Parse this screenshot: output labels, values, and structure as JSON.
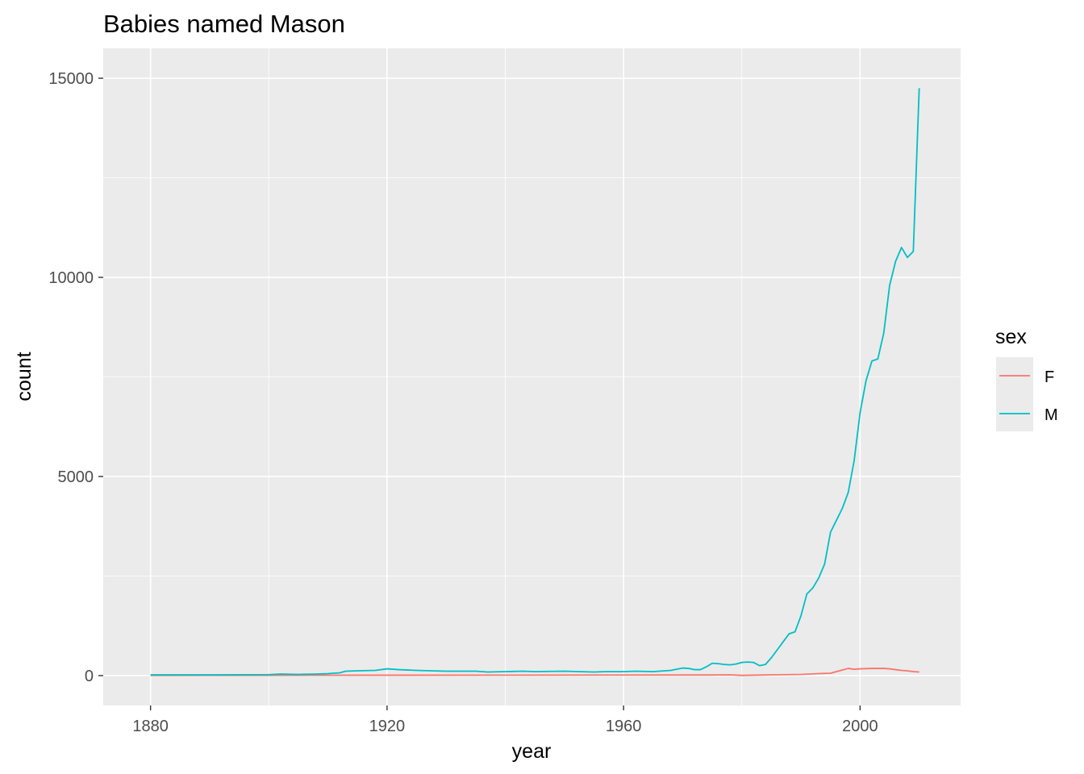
{
  "chart_data": {
    "type": "line",
    "title": "Babies named Mason",
    "xlabel": "year",
    "ylabel": "count",
    "xlim": [
      1872,
      2017
    ],
    "ylim": [
      -750,
      15750
    ],
    "x_ticks": [
      1880,
      1920,
      1960,
      2000
    ],
    "y_ticks": [
      0,
      5000,
      10000,
      15000
    ],
    "grid": true,
    "legend": {
      "title": "sex",
      "position": "right"
    },
    "series": [
      {
        "name": "F",
        "color": "#F8766D",
        "x": [
          1880,
          1900,
          1940,
          1975,
          1978,
          1980,
          1982,
          1985,
          1990,
          1993,
          1995,
          1996,
          1997,
          1998,
          1999,
          2000,
          2002,
          2004,
          2005,
          2006,
          2007,
          2008,
          2009,
          2010
        ],
        "y": [
          5,
          8,
          12,
          15,
          20,
          5,
          10,
          20,
          30,
          50,
          60,
          100,
          140,
          180,
          160,
          170,
          180,
          180,
          170,
          150,
          130,
          120,
          100,
          90
        ]
      },
      {
        "name": "M",
        "color": "#00BFC4",
        "x": [
          1880,
          1890,
          1900,
          1902,
          1905,
          1908,
          1910,
          1912,
          1913,
          1915,
          1918,
          1920,
          1922,
          1925,
          1930,
          1935,
          1937,
          1940,
          1943,
          1945,
          1950,
          1955,
          1957,
          1960,
          1962,
          1965,
          1968,
          1969,
          1970,
          1971,
          1972,
          1973,
          1974,
          1975,
          1976,
          1977,
          1978,
          1979,
          1980,
          1981,
          1982,
          1983,
          1984,
          1985,
          1986,
          1987,
          1988,
          1989,
          1990,
          1991,
          1992,
          1993,
          1994,
          1995,
          1996,
          1997,
          1998,
          1999,
          2000,
          2001,
          2002,
          2003,
          2004,
          2005,
          2006,
          2007,
          2008,
          2009,
          2010
        ],
        "y": [
          20,
          20,
          25,
          40,
          30,
          40,
          50,
          70,
          110,
          120,
          130,
          170,
          150,
          130,
          110,
          110,
          90,
          100,
          110,
          100,
          110,
          90,
          100,
          100,
          110,
          100,
          130,
          160,
          190,
          180,
          150,
          150,
          220,
          310,
          300,
          280,
          270,
          290,
          330,
          340,
          330,
          250,
          280,
          450,
          650,
          850,
          1050,
          1100,
          1500,
          2050,
          2200,
          2450,
          2800,
          3600,
          3900,
          4200,
          4600,
          5400,
          6600,
          7400,
          7900,
          7950,
          8600,
          9800,
          10400,
          10750,
          10500,
          10650,
          14750
        ]
      }
    ]
  }
}
